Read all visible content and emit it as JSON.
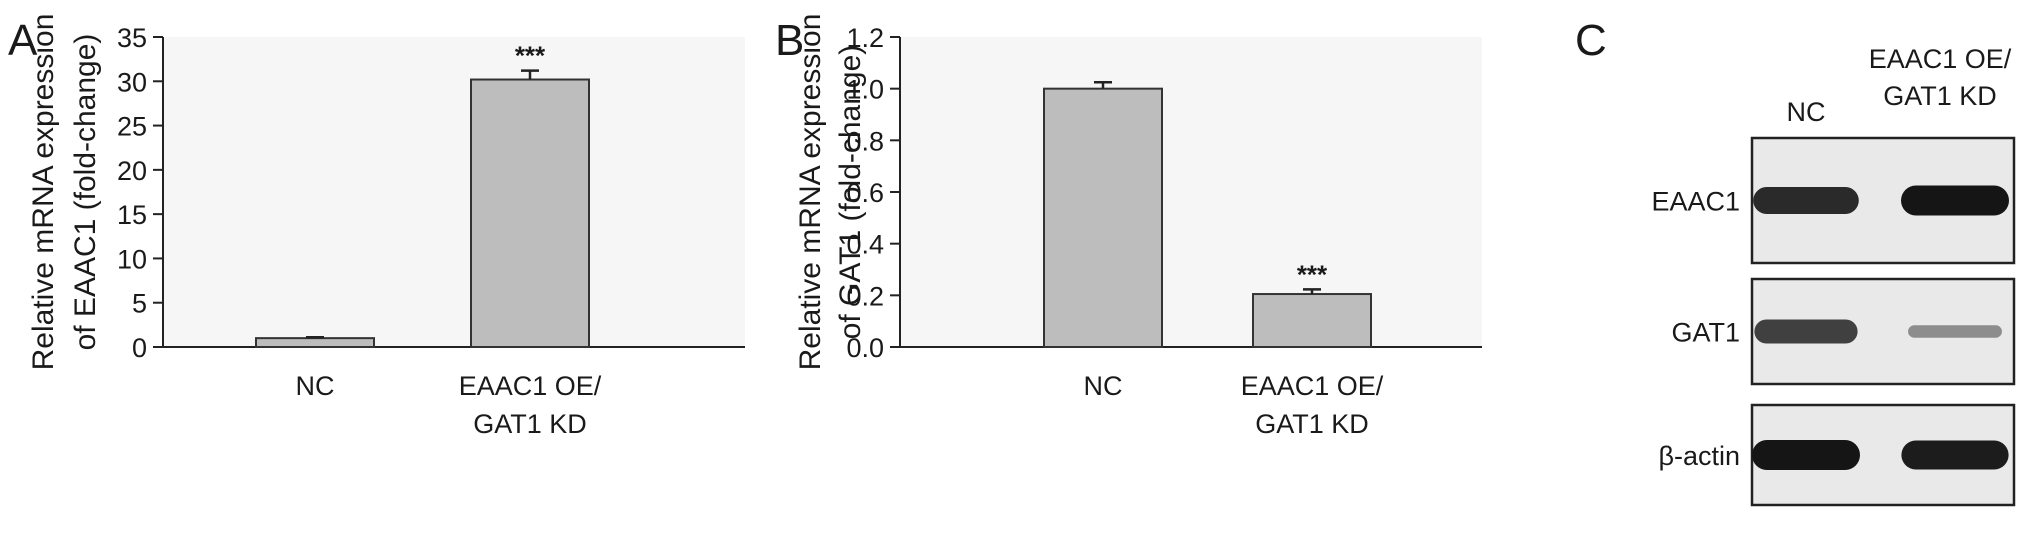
{
  "panels": {
    "a_letter": "A",
    "b_letter": "B",
    "c_letter": "C"
  },
  "chart_data": [
    {
      "type": "bar",
      "panel": "A",
      "categories": [
        "NC",
        "EAAC1 OE/\nGAT1 KD"
      ],
      "values": [
        1.0,
        30.2
      ],
      "errors": [
        0.1,
        1.0
      ],
      "significance": [
        "",
        "***"
      ],
      "ylabel": "Relative mRNA expression\nof EAAC1 (fold-change)",
      "xlabel": "",
      "ylim": [
        0,
        35
      ],
      "yticks": [
        0,
        5,
        10,
        15,
        20,
        25,
        30,
        35
      ],
      "ytick_labels": [
        "0",
        "5",
        "10",
        "15",
        "20",
        "25",
        "30",
        "35"
      ]
    },
    {
      "type": "bar",
      "panel": "B",
      "categories": [
        "NC",
        "EAAC1 OE/\nGAT1 KD"
      ],
      "values": [
        1.0,
        0.205
      ],
      "errors": [
        0.025,
        0.018
      ],
      "significance": [
        "",
        "***"
      ],
      "ylabel": "Relative mRNA expression\nof GAT1 (fold-change)",
      "xlabel": "",
      "ylim": [
        0,
        1.2
      ],
      "yticks": [
        0,
        0.2,
        0.4,
        0.6,
        0.8,
        1.0,
        1.2
      ],
      "ytick_labels": [
        "0.0",
        "0.2",
        "0.4",
        "0.6",
        "0.8",
        "1.0",
        "1.2"
      ]
    }
  ],
  "blot": {
    "lane_labels": [
      "NC",
      "EAAC1 OE/\nGAT1 KD"
    ],
    "rows": [
      {
        "label": "EAAC1",
        "intensities": [
          0.85,
          1.0
        ]
      },
      {
        "label": "GAT1",
        "intensities": [
          0.7,
          0.12
        ]
      },
      {
        "label": "β-actin",
        "intensities": [
          1.0,
          0.95
        ]
      }
    ]
  }
}
